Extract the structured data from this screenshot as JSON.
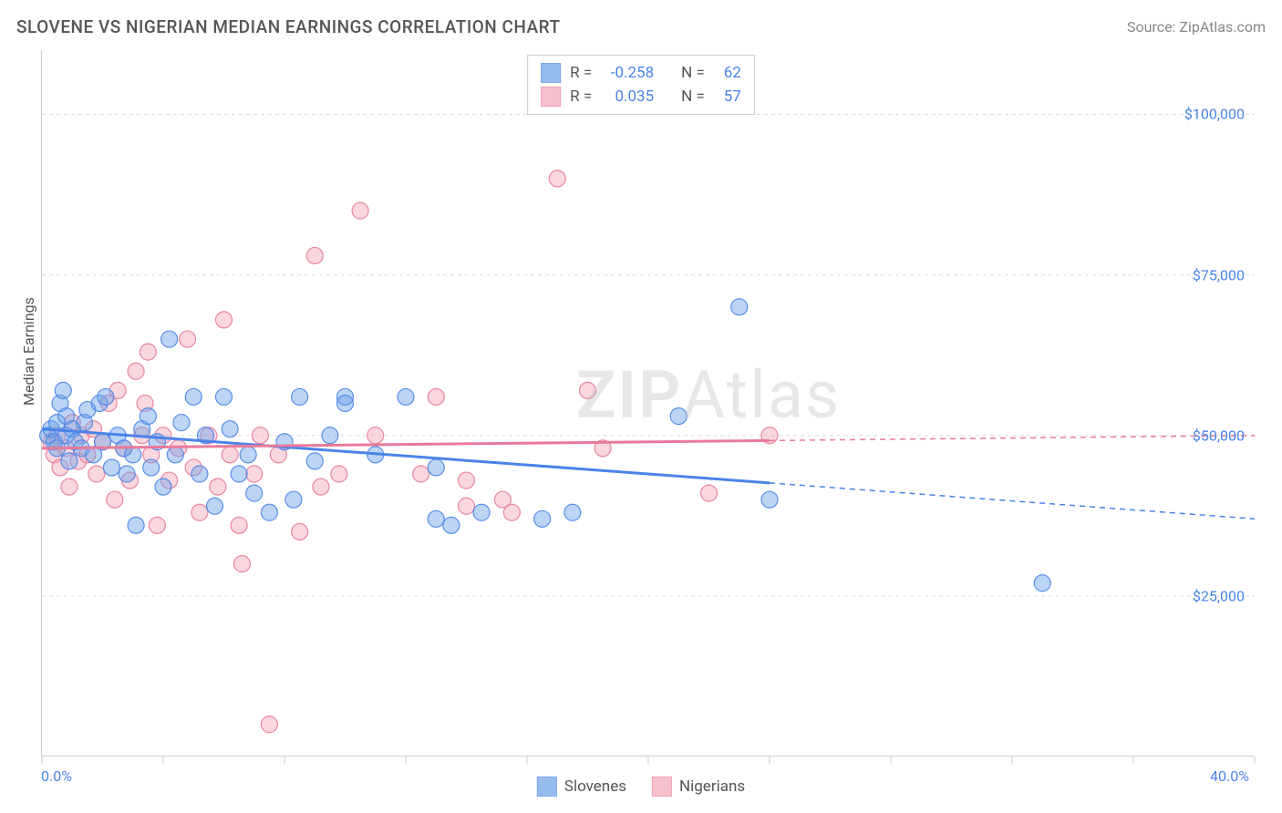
{
  "chart": {
    "type": "scatter",
    "title": "SLOVENE VS NIGERIAN MEDIAN EARNINGS CORRELATION CHART",
    "source_label": "Source: ZipAtlas.com",
    "watermark": "ZIPAtlas",
    "y_axis_title": "Median Earnings",
    "background_color": "#ffffff",
    "grid_color": "#dddddd",
    "axis_color": "#cccccc",
    "label_color": "#4a84e8",
    "text_color": "#555555",
    "title_fontsize": 19,
    "label_fontsize": 16,
    "xlim": [
      0,
      40
    ],
    "ylim": [
      0,
      110000
    ],
    "x_tick_positions": [
      0,
      4,
      8,
      12,
      16,
      20,
      24,
      28,
      32,
      36,
      40
    ],
    "x_tick_labels_shown": {
      "0": "0.0%",
      "40": "40.0%"
    },
    "y_ticks": [
      25000,
      50000,
      75000,
      100000
    ],
    "y_tick_labels": [
      "$25,000",
      "$50,000",
      "$75,000",
      "$100,000"
    ],
    "marker_radius": 9,
    "marker_fill_opacity": 0.45,
    "marker_stroke_opacity": 0.9,
    "trend_line_width": 3,
    "series": [
      {
        "name": "Slovenes",
        "color": "#6aa1e8",
        "stroke": "#4a84e8",
        "R": "-0.258",
        "N": "62",
        "trend": {
          "y_at_x0": 51000,
          "y_at_x40": 37000,
          "solid_until_x": 24
        },
        "points": [
          [
            0.2,
            50000
          ],
          [
            0.3,
            51000
          ],
          [
            0.4,
            49000
          ],
          [
            0.5,
            52000
          ],
          [
            0.5,
            48000
          ],
          [
            0.6,
            55000
          ],
          [
            0.7,
            57000
          ],
          [
            0.8,
            50000
          ],
          [
            0.8,
            53000
          ],
          [
            0.9,
            46000
          ],
          [
            1.0,
            51000
          ],
          [
            1.1,
            49000
          ],
          [
            1.3,
            48000
          ],
          [
            1.4,
            52000
          ],
          [
            1.5,
            54000
          ],
          [
            1.7,
            47000
          ],
          [
            1.9,
            55000
          ],
          [
            2.0,
            49000
          ],
          [
            2.1,
            56000
          ],
          [
            2.3,
            45000
          ],
          [
            2.5,
            50000
          ],
          [
            2.7,
            48000
          ],
          [
            2.8,
            44000
          ],
          [
            3.0,
            47000
          ],
          [
            3.1,
            36000
          ],
          [
            3.3,
            51000
          ],
          [
            3.5,
            53000
          ],
          [
            3.6,
            45000
          ],
          [
            3.8,
            49000
          ],
          [
            4.0,
            42000
          ],
          [
            4.2,
            65000
          ],
          [
            4.4,
            47000
          ],
          [
            4.6,
            52000
          ],
          [
            5.0,
            56000
          ],
          [
            5.2,
            44000
          ],
          [
            5.4,
            50000
          ],
          [
            5.7,
            39000
          ],
          [
            6.0,
            56000
          ],
          [
            6.2,
            51000
          ],
          [
            6.5,
            44000
          ],
          [
            6.8,
            47000
          ],
          [
            7.0,
            41000
          ],
          [
            7.5,
            38000
          ],
          [
            8.0,
            49000
          ],
          [
            8.3,
            40000
          ],
          [
            8.5,
            56000
          ],
          [
            9.0,
            46000
          ],
          [
            9.5,
            50000
          ],
          [
            10.0,
            56000
          ],
          [
            10.0,
            55000
          ],
          [
            11.0,
            47000
          ],
          [
            12.0,
            56000
          ],
          [
            13.0,
            45000
          ],
          [
            13.0,
            37000
          ],
          [
            13.5,
            36000
          ],
          [
            14.5,
            38000
          ],
          [
            16.5,
            37000
          ],
          [
            17.5,
            38000
          ],
          [
            21.0,
            53000
          ],
          [
            23.0,
            70000
          ],
          [
            24.0,
            40000
          ],
          [
            33.0,
            27000
          ]
        ]
      },
      {
        "name": "Nigerians",
        "color": "#f4a6b8",
        "stroke": "#e87a99",
        "R": "0.035",
        "N": "57",
        "trend": {
          "y_at_x0": 48000,
          "y_at_x40": 50000,
          "solid_until_x": 24
        },
        "points": [
          [
            0.3,
            49000
          ],
          [
            0.4,
            47000
          ],
          [
            0.5,
            50000
          ],
          [
            0.6,
            45000
          ],
          [
            0.8,
            48000
          ],
          [
            0.9,
            42000
          ],
          [
            1.0,
            52000
          ],
          [
            1.2,
            46000
          ],
          [
            1.3,
            50000
          ],
          [
            1.5,
            47000
          ],
          [
            1.7,
            51000
          ],
          [
            1.8,
            44000
          ],
          [
            2.0,
            49000
          ],
          [
            2.2,
            55000
          ],
          [
            2.4,
            40000
          ],
          [
            2.5,
            57000
          ],
          [
            2.7,
            48000
          ],
          [
            2.9,
            43000
          ],
          [
            3.1,
            60000
          ],
          [
            3.3,
            50000
          ],
          [
            3.4,
            55000
          ],
          [
            3.5,
            63000
          ],
          [
            3.6,
            47000
          ],
          [
            3.8,
            36000
          ],
          [
            4.0,
            50000
          ],
          [
            4.2,
            43000
          ],
          [
            4.5,
            48000
          ],
          [
            4.8,
            65000
          ],
          [
            5.0,
            45000
          ],
          [
            5.2,
            38000
          ],
          [
            5.5,
            50000
          ],
          [
            5.8,
            42000
          ],
          [
            6.0,
            68000
          ],
          [
            6.2,
            47000
          ],
          [
            6.5,
            36000
          ],
          [
            6.6,
            30000
          ],
          [
            7.0,
            44000
          ],
          [
            7.2,
            50000
          ],
          [
            7.5,
            5000
          ],
          [
            7.8,
            47000
          ],
          [
            8.5,
            35000
          ],
          [
            9.0,
            78000
          ],
          [
            9.2,
            42000
          ],
          [
            9.8,
            44000
          ],
          [
            10.5,
            85000
          ],
          [
            11.0,
            50000
          ],
          [
            12.5,
            44000
          ],
          [
            13.0,
            56000
          ],
          [
            14.0,
            43000
          ],
          [
            14.0,
            39000
          ],
          [
            15.2,
            40000
          ],
          [
            15.5,
            38000
          ],
          [
            17.0,
            90000
          ],
          [
            18.0,
            57000
          ],
          [
            18.5,
            48000
          ],
          [
            22.0,
            41000
          ],
          [
            24.0,
            50000
          ]
        ]
      }
    ],
    "stats_legend_labels": {
      "R": "R =",
      "N": "N ="
    },
    "bottom_legend_labels": [
      "Slovenes",
      "Nigerians"
    ]
  }
}
